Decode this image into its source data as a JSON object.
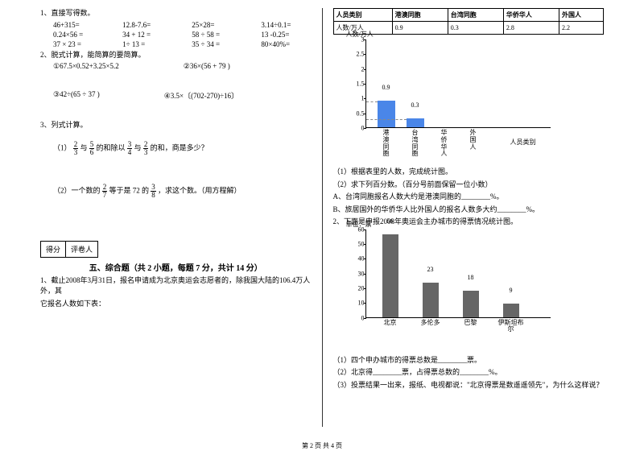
{
  "left": {
    "q1_title": "1、直接写得数。",
    "row1": [
      "46+315=",
      "12.8-7.6=",
      "25×28=",
      "3.14÷0.1="
    ],
    "row2": [
      "0.24×56 =",
      "34 + 12 =",
      "58 ÷ 58 =",
      "13 -0.25="
    ],
    "row3": [
      "37 × 23 =",
      "1÷ 13 =",
      "35 ÷ 34 =",
      "80×40%="
    ],
    "q2_title": "2、脱式计算，能简算的要简算。",
    "q2_a": "①67.5×0.52+3.25×5.2",
    "q2_b": "②36×(56 + 79 )",
    "q2_c": "③42÷(65 ÷ 37 )",
    "q2_d": "④3.5×〔(702-270)÷16〕",
    "q3_title": "3、列式计算。",
    "q3_1_pre": "（1）",
    "q3_1_a_n": "2",
    "q3_1_a_d": "3",
    "q3_1_mid1": "与",
    "q3_1_b_n": "5",
    "q3_1_b_d": "6",
    "q3_1_mid2": "的和除以",
    "q3_1_c_n": "3",
    "q3_1_c_d": "4",
    "q3_1_mid3": "与",
    "q3_1_d_n": "2",
    "q3_1_d_d": "3",
    "q3_1_end": "的和，商是多少？",
    "q3_2_pre": "（2）一个数的",
    "q3_2_a_n": "2",
    "q3_2_a_d": "7",
    "q3_2_mid": "等于是 72 的",
    "q3_2_b_n": "3",
    "q3_2_b_d": "8",
    "q3_2_end": "，求这个数。（用方程解）",
    "score_a": "得分",
    "score_b": "评卷人",
    "section5": "五、综合题（共 2 小题，每题 7 分，共计 14 分）",
    "p1_a": "1、截止2008年3月31日，报名申请成为北京奥运会志愿者的，除我国大陆的106.4万人外，其",
    "p1_b": "它报名人数如下表："
  },
  "right": {
    "table": {
      "headers": [
        "人员类别",
        "港澳同胞",
        "台湾同胞",
        "华侨华人",
        "外国人"
      ],
      "row_label": "人数/万人",
      "row": [
        "0.9",
        "0.3",
        "2.8",
        "2.2"
      ]
    },
    "chart1": {
      "ylabel": "人数/万人",
      "ymax": 3,
      "ystep": 0.5,
      "categories": [
        "港澳同胞",
        "台湾同胞",
        "华侨华人",
        "外国人"
      ],
      "values": [
        0.9,
        0.3,
        null,
        null
      ],
      "bar_color": "#4a86e8",
      "xaxis_label": "人员类别"
    },
    "sub1": "（1）根据表里的人数，完成统计图。",
    "sub2": "（2）求下列百分数。（百分号前面保留一位小数）",
    "sub2a": "A、台湾同胞报名人数大约是港澳同胞的________%。",
    "sub2b": "B、旅居国外的华侨华人比外国人的报名人数多大约________%。",
    "p2": "2、下面是申报2008年奥运会主办城市的得票情况统计图。",
    "chart2": {
      "ylabel": "单位：票",
      "ymax": 60,
      "ystep": 10,
      "categories": [
        "北京",
        "多伦多",
        "巴黎",
        "伊斯坦布尔"
      ],
      "values": [
        56,
        23,
        18,
        9
      ],
      "bar_color": "#666666"
    },
    "q2_1": "（1）四个申办城市的得票总数是________票。",
    "q2_2": "（2）北京得________票，占得票总数的________%。",
    "q2_3": "（3）投票结果一出来，报纸、电视都说：\"北京得票是数遥遥领先\"，为什么这样说？"
  },
  "footer": "第 2 页  共 4 页"
}
